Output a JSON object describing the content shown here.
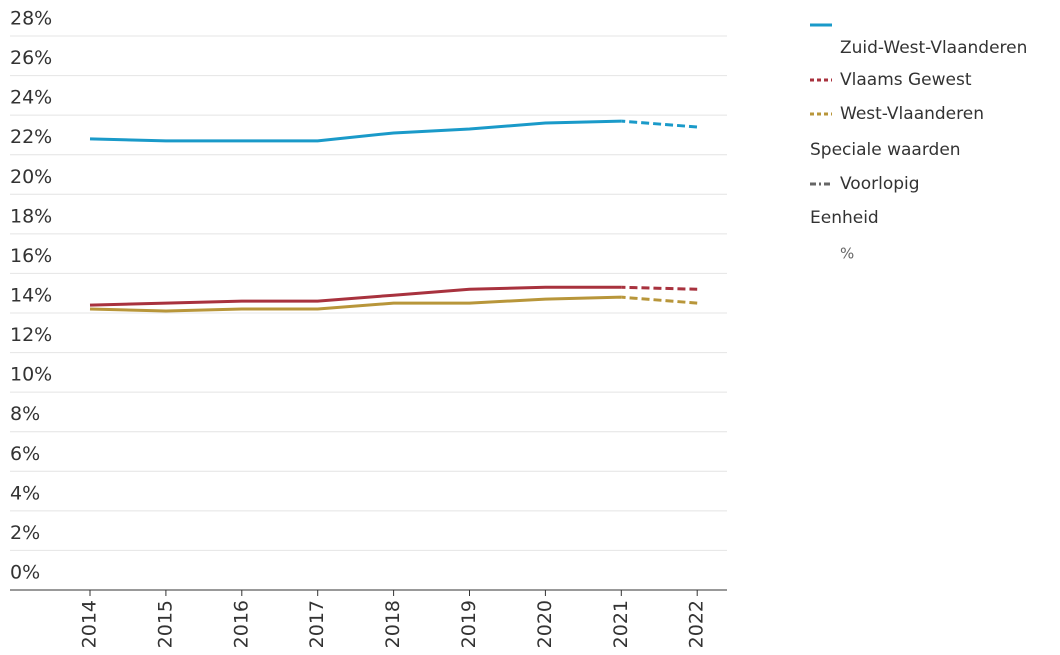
{
  "chart_data": {
    "type": "line",
    "categories": [
      "2014",
      "2015",
      "2016",
      "2017",
      "2018",
      "2019",
      "2020",
      "2021",
      "2022"
    ],
    "series": [
      {
        "name": "Zuid-West-Vlaanderen",
        "color": "#1a9ac9",
        "values": [
          22.8,
          22.7,
          22.7,
          22.7,
          23.1,
          23.3,
          23.6,
          23.7,
          23.4
        ]
      },
      {
        "name": "Vlaams Gewest",
        "color": "#a8323e",
        "values": [
          14.4,
          14.5,
          14.6,
          14.6,
          14.9,
          15.2,
          15.3,
          15.3,
          15.2
        ]
      },
      {
        "name": "West-Vlaanderen",
        "color": "#b8963a",
        "values": [
          14.2,
          14.1,
          14.2,
          14.2,
          14.5,
          14.5,
          14.7,
          14.8,
          14.5
        ]
      }
    ],
    "ylim": [
      0,
      28
    ],
    "yticks": [
      {
        "value": 0,
        "label": "0%"
      },
      {
        "value": 2,
        "label": "2%"
      },
      {
        "value": 4,
        "label": "4%"
      },
      {
        "value": 6,
        "label": "6%"
      },
      {
        "value": 8,
        "label": "8%"
      },
      {
        "value": 10,
        "label": "10%"
      },
      {
        "value": 12,
        "label": "12%"
      },
      {
        "value": 14,
        "label": "14%"
      },
      {
        "value": 16,
        "label": "16%"
      },
      {
        "value": 18,
        "label": "18%"
      },
      {
        "value": 20,
        "label": "20%"
      },
      {
        "value": 22,
        "label": "22%"
      },
      {
        "value": 24,
        "label": "24%"
      },
      {
        "value": 26,
        "label": "26%"
      },
      {
        "value": 28,
        "label": "28%"
      }
    ],
    "grid": true,
    "legend_position": "right",
    "special_values_title": "Speciale waarden",
    "provisional_label": "Voorlopig",
    "provisional_categories": [
      "2022"
    ],
    "unit_title": "Eenheid",
    "unit": "%"
  }
}
